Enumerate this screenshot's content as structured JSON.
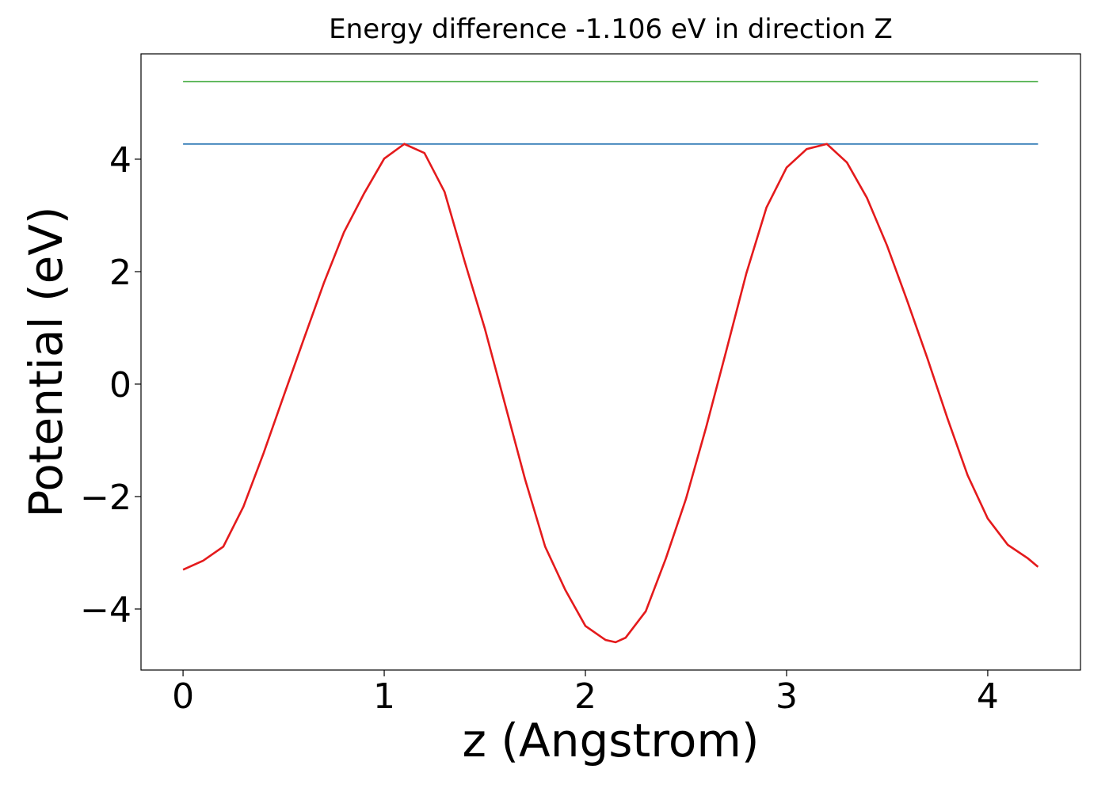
{
  "chart_data": {
    "type": "line",
    "title": "Energy difference -1.106 eV in direction Z",
    "x_label": "z (Angstrom)",
    "y_label": "Potential (eV)",
    "xlim": [
      -0.209,
      4.461
    ],
    "ylim": [
      -5.085,
      5.873
    ],
    "xticks": [
      0,
      1,
      2,
      3,
      4
    ],
    "yticks": [
      {
        "value": -4,
        "label": "−4"
      },
      {
        "value": -2,
        "label": "−2"
      },
      0,
      2,
      4
    ],
    "grid": false,
    "series": [
      {
        "color": "#e41a1c",
        "x": [
          0,
          0.1,
          0.2,
          0.3,
          0.4,
          0.5,
          0.6,
          0.7,
          0.8,
          0.9,
          1.0,
          1.1,
          1.2,
          1.3,
          1.4,
          1.5,
          1.6,
          1.7,
          1.8,
          1.9,
          2.0,
          2.1,
          2.15,
          2.2,
          2.3,
          2.4,
          2.5,
          2.6,
          2.7,
          2.8,
          2.9,
          3.0,
          3.1,
          3.2,
          3.3,
          3.4,
          3.5,
          3.6,
          3.7,
          3.8,
          3.9,
          4.0,
          4.1,
          4.2,
          4.25
        ],
        "values": [
          -3.3,
          -3.14,
          -2.89,
          -2.18,
          -1.23,
          -0.21,
          0.8,
          1.8,
          2.7,
          3.39,
          4.01,
          4.27,
          4.11,
          3.42,
          2.18,
          0.99,
          -0.35,
          -1.69,
          -2.89,
          -3.66,
          -4.3,
          -4.55,
          -4.59,
          -4.51,
          -4.04,
          -3.1,
          -2.04,
          -0.77,
          0.59,
          1.97,
          3.14,
          3.85,
          4.18,
          4.27,
          3.94,
          3.31,
          2.46,
          1.48,
          0.46,
          -0.61,
          -1.62,
          -2.39,
          -2.86,
          -3.1,
          -3.25
        ]
      },
      {
        "color": "#377eb8",
        "x": [
          0,
          4.25
        ],
        "values": [
          4.27,
          4.27
        ]
      },
      {
        "color": "#4daf4a",
        "x": [
          0,
          4.25
        ],
        "values": [
          5.38,
          5.38
        ]
      }
    ]
  }
}
